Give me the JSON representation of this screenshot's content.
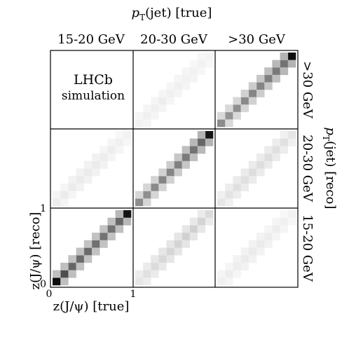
{
  "chart_data": {
    "type": "heatmap",
    "title": "",
    "top_axis_label": {
      "main": "p",
      "sub": "T",
      "rest": "(jet) [true]"
    },
    "right_axis_label": {
      "main": "p",
      "sub": "T",
      "rest": "(jet) [reco]"
    },
    "column_labels": [
      "15-20 GeV",
      "20-30 GeV",
      ">30 GeV"
    ],
    "row_labels": [
      ">30 GeV",
      "20-30 GeV",
      "15-20 GeV"
    ],
    "xlabel": "z(J/ψ) [true]",
    "ylabel": "z(J/ψ) [reco]",
    "x_ticks": [
      "0",
      "1"
    ],
    "y_ticks": [
      "0",
      "1"
    ],
    "xlim": [
      0,
      1
    ],
    "ylim": [
      0,
      1
    ],
    "bins_per_axis": 10,
    "annotation": [
      "LHCb",
      "simulation"
    ],
    "colorscale": [
      "#ffffff",
      "#000000"
    ],
    "panels": [
      {
        "row": 0,
        "col": 0,
        "diag": [
          0,
          0,
          0,
          0,
          0,
          0,
          0,
          0,
          0,
          0
        ],
        "off": [
          0,
          0,
          0,
          0,
          0,
          0,
          0,
          0,
          0
        ]
      },
      {
        "row": 0,
        "col": 1,
        "diag": [
          0.05,
          0.06,
          0.06,
          0.07,
          0.06,
          0.06,
          0.05,
          0.05,
          0.05,
          0.04
        ],
        "off": [
          0.04,
          0.04,
          0.04,
          0.04,
          0.04,
          0.04,
          0.04,
          0.03,
          0.03
        ]
      },
      {
        "row": 0,
        "col": 2,
        "diag": [
          0.45,
          0.42,
          0.44,
          0.46,
          0.48,
          0.48,
          0.5,
          0.52,
          0.55,
          0.95
        ],
        "off": [
          0.15,
          0.15,
          0.16,
          0.18,
          0.2,
          0.22,
          0.25,
          0.28,
          0.3
        ]
      },
      {
        "row": 1,
        "col": 0,
        "diag": [
          0.07,
          0.08,
          0.08,
          0.08,
          0.08,
          0.08,
          0.07,
          0.07,
          0.06,
          0.05
        ],
        "off": [
          0.04,
          0.04,
          0.05,
          0.05,
          0.05,
          0.05,
          0.04,
          0.04,
          0.03
        ]
      },
      {
        "row": 1,
        "col": 1,
        "diag": [
          0.45,
          0.44,
          0.46,
          0.48,
          0.48,
          0.5,
          0.52,
          0.55,
          0.6,
          0.92
        ],
        "off": [
          0.16,
          0.16,
          0.17,
          0.18,
          0.2,
          0.22,
          0.25,
          0.28,
          0.3
        ]
      },
      {
        "row": 1,
        "col": 2,
        "diag": [
          0.1,
          0.11,
          0.12,
          0.12,
          0.13,
          0.13,
          0.13,
          0.12,
          0.12,
          0.1
        ],
        "off": [
          0.06,
          0.07,
          0.08,
          0.08,
          0.08,
          0.08,
          0.08,
          0.07,
          0.06
        ]
      },
      {
        "row": 2,
        "col": 0,
        "diag": [
          0.95,
          0.7,
          0.6,
          0.58,
          0.58,
          0.56,
          0.55,
          0.55,
          0.6,
          0.92
        ],
        "off": [
          0.25,
          0.25,
          0.24,
          0.24,
          0.24,
          0.24,
          0.24,
          0.25,
          0.28
        ]
      },
      {
        "row": 2,
        "col": 1,
        "diag": [
          0.1,
          0.12,
          0.14,
          0.15,
          0.16,
          0.17,
          0.18,
          0.18,
          0.17,
          0.14
        ],
        "off": [
          0.07,
          0.08,
          0.09,
          0.1,
          0.1,
          0.1,
          0.1,
          0.09,
          0.08
        ]
      },
      {
        "row": 2,
        "col": 2,
        "diag": [
          0.06,
          0.07,
          0.07,
          0.08,
          0.08,
          0.08,
          0.07,
          0.07,
          0.06,
          0.05
        ],
        "off": [
          0.04,
          0.04,
          0.05,
          0.05,
          0.05,
          0.05,
          0.04,
          0.04,
          0.03
        ]
      }
    ]
  }
}
